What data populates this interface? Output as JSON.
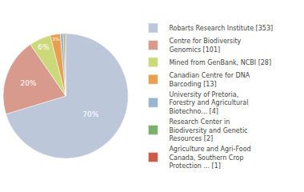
{
  "chart_data": {
    "type": "pie",
    "categories": [
      "Robarts Research Institute [353]",
      "Centre for Biodiversity\nGenomics [101]",
      "Mined from GenBank, NCBI [28]",
      "Canadian Centre for DNA\nBarcoding [13]",
      "University of Pretoria,\nForestry and Agricultural\nBiotechno... [4]",
      "Research Center in\nBiodiversity and Genetic\nResources [2]",
      "Agriculture and Agri-Food\nCanada, Southern Crop\nProtection ... [1]"
    ],
    "values": [
      70.32,
      20.12,
      5.58,
      2.59,
      0.8,
      0.4,
      0.2
    ],
    "value_labels": [
      "70%",
      "20%",
      "6%",
      "3%",
      null,
      null,
      null
    ],
    "colors": [
      "#bcc8da",
      "#d99a8e",
      "#ccd97a",
      "#e8a050",
      "#9ab5ce",
      "#7ab06a",
      "#cc5a44"
    ],
    "legend": "right"
  }
}
